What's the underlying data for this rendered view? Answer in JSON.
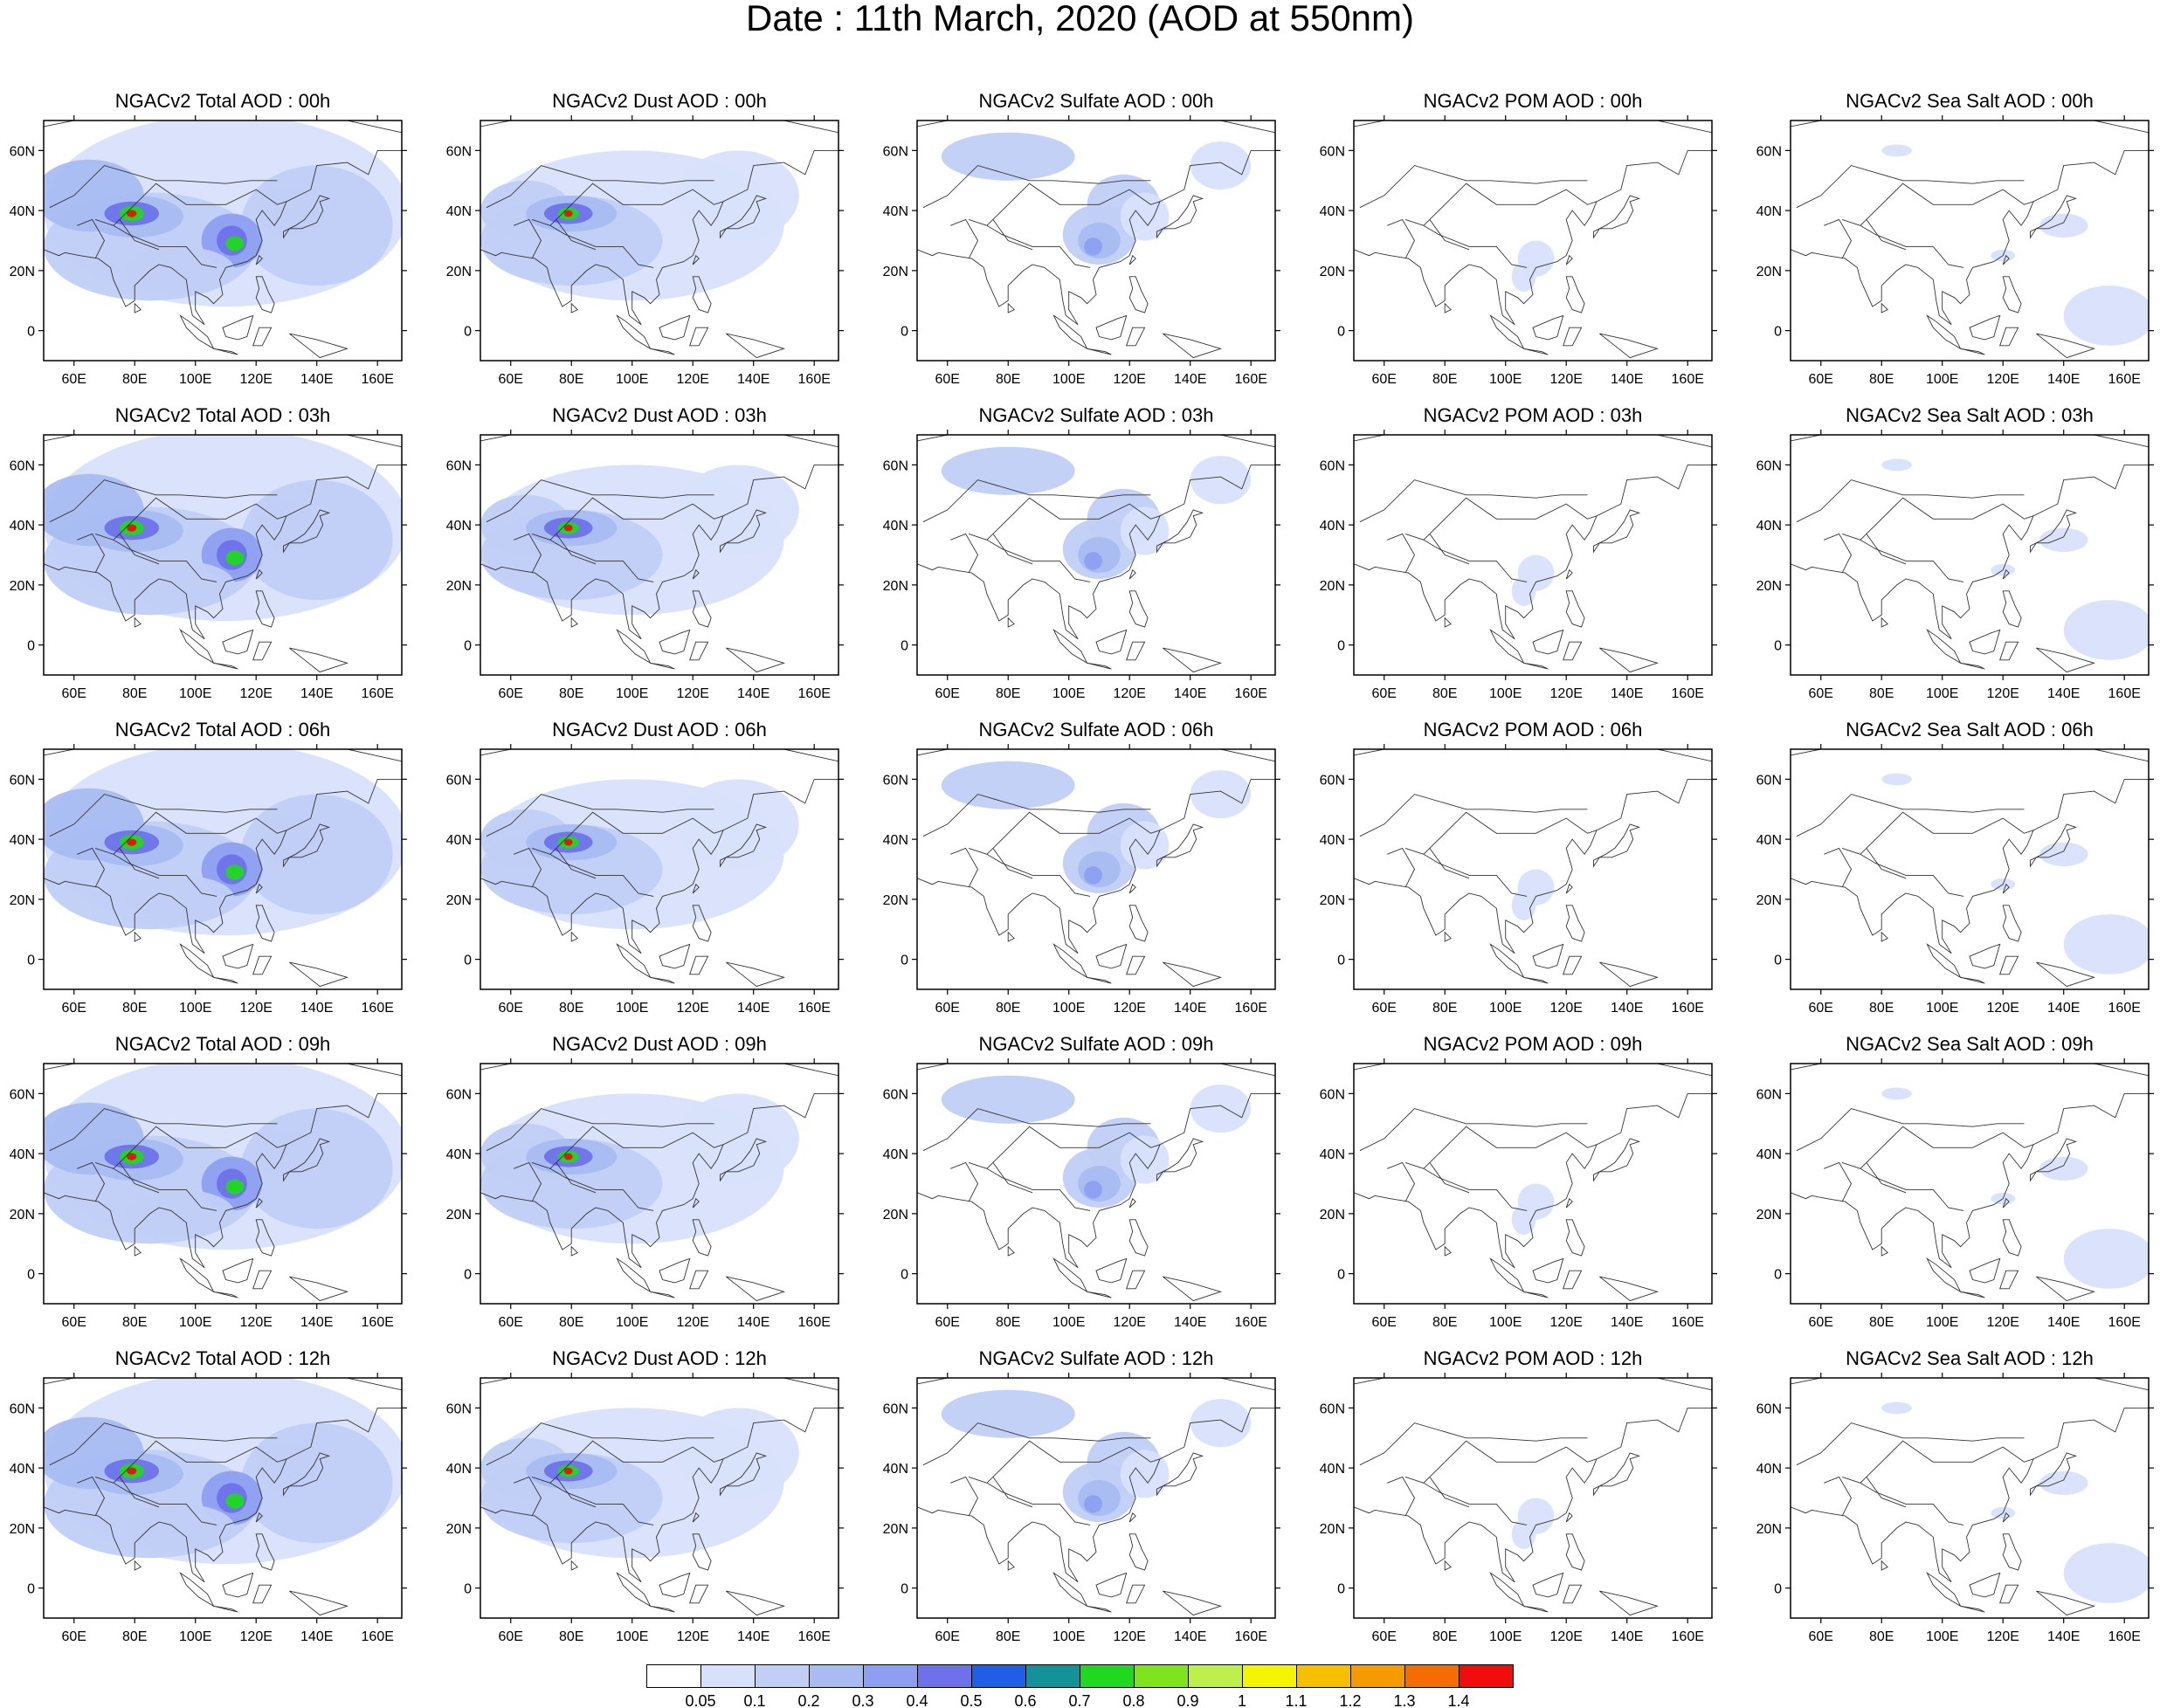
{
  "title": "Date : 11th March, 2020 (AOD at 550nm)",
  "axes": {
    "lat_ticks": [
      "60N",
      "40N",
      "20N",
      "0"
    ],
    "lon_ticks": [
      "60E",
      "80E",
      "100E",
      "120E",
      "140E",
      "160E"
    ]
  },
  "panels": [
    {
      "title": "NGACv2 Total AOD : 00h",
      "species": "total",
      "hour": "00h"
    },
    {
      "title": "NGACv2 Dust AOD : 00h",
      "species": "dust",
      "hour": "00h"
    },
    {
      "title": "NGACv2 Sulfate AOD : 00h",
      "species": "sulfate",
      "hour": "00h"
    },
    {
      "title": "NGACv2 POM AOD : 00h",
      "species": "pom",
      "hour": "00h"
    },
    {
      "title": "NGACv2 Sea Salt AOD : 00h",
      "species": "seasalt",
      "hour": "00h"
    },
    {
      "title": "NGACv2 Total AOD : 03h",
      "species": "total",
      "hour": "03h"
    },
    {
      "title": "NGACv2 Dust AOD : 03h",
      "species": "dust",
      "hour": "03h"
    },
    {
      "title": "NGACv2 Sulfate AOD : 03h",
      "species": "sulfate",
      "hour": "03h"
    },
    {
      "title": "NGACv2 POM AOD : 03h",
      "species": "pom",
      "hour": "03h"
    },
    {
      "title": "NGACv2 Sea Salt AOD : 03h",
      "species": "seasalt",
      "hour": "03h"
    },
    {
      "title": "NGACv2 Total AOD : 06h",
      "species": "total",
      "hour": "06h"
    },
    {
      "title": "NGACv2 Dust AOD : 06h",
      "species": "dust",
      "hour": "06h"
    },
    {
      "title": "NGACv2 Sulfate AOD : 06h",
      "species": "sulfate",
      "hour": "06h"
    },
    {
      "title": "NGACv2 POM AOD : 06h",
      "species": "pom",
      "hour": "06h"
    },
    {
      "title": "NGACv2 Sea Salt AOD : 06h",
      "species": "seasalt",
      "hour": "06h"
    },
    {
      "title": "NGACv2 Total AOD : 09h",
      "species": "total",
      "hour": "09h"
    },
    {
      "title": "NGACv2 Dust AOD : 09h",
      "species": "dust",
      "hour": "09h"
    },
    {
      "title": "NGACv2 Sulfate AOD : 09h",
      "species": "sulfate",
      "hour": "09h"
    },
    {
      "title": "NGACv2 POM AOD : 09h",
      "species": "pom",
      "hour": "09h"
    },
    {
      "title": "NGACv2 Sea Salt  AOD : 09h",
      "species": "seasalt",
      "hour": "09h"
    },
    {
      "title": "NGACv2 Total AOD  : 12h",
      "species": "total",
      "hour": "12h"
    },
    {
      "title": "NGACv2 Dust AOD : 12h",
      "species": "dust",
      "hour": "12h"
    },
    {
      "title": "NGACv2 Sulfate AOD : 12h",
      "species": "sulfate",
      "hour": "12h"
    },
    {
      "title": "NGACv2 POM  AOD : 12h",
      "species": "pom",
      "hour": "12h"
    },
    {
      "title": "NGACv2 Sea Salt  AOD : 12h",
      "species": "seasalt",
      "hour": "12h"
    }
  ],
  "colorbar": {
    "labels": [
      "0.05",
      "0.1",
      "0.2",
      "0.3",
      "0.4",
      "0.5",
      "0.6",
      "0.7",
      "0.8",
      "0.9",
      "1",
      "1.1",
      "1.2",
      "1.3",
      "1.4"
    ],
    "colors": [
      "#ffffff",
      "#d8e1fb",
      "#c1cff7",
      "#a9bcf2",
      "#8d9ff0",
      "#6e72ea",
      "#1f5fe6",
      "#14929a",
      "#20d820",
      "#7ee51c",
      "#bdf04a",
      "#f5f500",
      "#f6c000",
      "#f59b00",
      "#f56c00",
      "#f20d0d"
    ]
  },
  "colors": {
    "coastline": "#333333",
    "frame": "#000000"
  }
}
